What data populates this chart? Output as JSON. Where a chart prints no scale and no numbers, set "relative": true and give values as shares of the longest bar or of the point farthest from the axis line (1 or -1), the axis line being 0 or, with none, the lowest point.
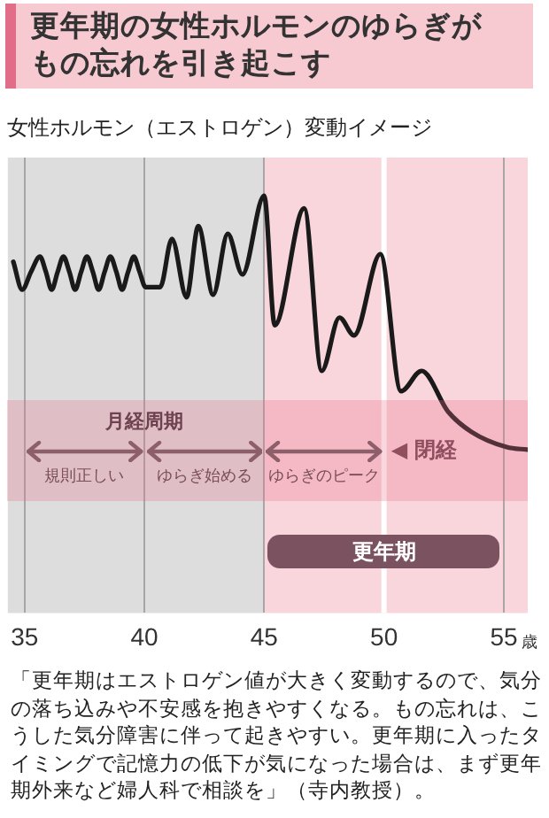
{
  "chart_data": {
    "type": "line",
    "title": "更年期の女性ホルモンのゆらぎがもの忘れを引き起こす",
    "subtitle": "女性ホルモン（エストロゲン）変動イメージ",
    "xlabel": "歳",
    "relative": true,
    "tick_labels": "x",
    "grid": "x",
    "legend": false,
    "marker": "none",
    "line_style": "solid",
    "xlim": [
      34.3,
      56
    ],
    "xticks": [
      35,
      40,
      45,
      50,
      55
    ],
    "x": [
      34.53,
      34.9,
      35.27,
      35.64,
      35.89,
      36.13,
      36.38,
      36.62,
      36.87,
      37.11,
      37.36,
      37.6,
      37.85,
      38.09,
      38.34,
      38.58,
      38.83,
      39.07,
      39.32,
      39.56,
      39.8,
      40.05,
      40.66,
      41.15,
      41.76,
      42.25,
      42.87,
      43.48,
      44.09,
      45.0,
      45.44,
      46.67,
      47.4,
      48.14,
      48.75,
      49.85,
      50.71,
      51.57,
      52.67,
      53.65,
      55.12,
      55.98
    ],
    "series": [
      {
        "color": "#1a1a1a",
        "values": [
          0.74,
          0.63,
          0.7,
          0.76,
          0.7,
          0.63,
          0.7,
          0.76,
          0.7,
          0.63,
          0.7,
          0.76,
          0.7,
          0.63,
          0.7,
          0.76,
          0.7,
          0.63,
          0.7,
          0.76,
          0.7,
          0.64,
          0.64,
          0.83,
          0.6,
          0.88,
          0.61,
          0.85,
          0.69,
          1,
          0.49,
          0.95,
          0.31,
          0.52,
          0.45,
          0.77,
          0.23,
          0.31,
          0.15,
          0.07,
          0.01,
          0
        ]
      }
    ],
    "bands": [
      {
        "axis": "x",
        "from": 34.3,
        "to": 45,
        "color": "#dddddd"
      },
      {
        "axis": "x",
        "from": 45,
        "to": 56,
        "color": "#f9d6dc"
      }
    ],
    "ref_lines": [
      {
        "axis": "x",
        "value": 50,
        "label": "◀ 閉経",
        "color": "#ffffff"
      }
    ],
    "annotations": [
      "月経周期",
      "規則正しい",
      "ゆらぎ始める",
      "ゆらぎのピーク",
      "更年期",
      "「更年期はエストロゲン値が大きく変動するので、気分の落ち込みや不安感を抱きやすくなる。もの忘れは、こうした気分障害に伴って起きやすい。更年期に入ったタイミングで記憶力の低下が気になった場合は、まず更年期外来など婦人科で相談を」（寺内教授）。"
    ]
  }
}
